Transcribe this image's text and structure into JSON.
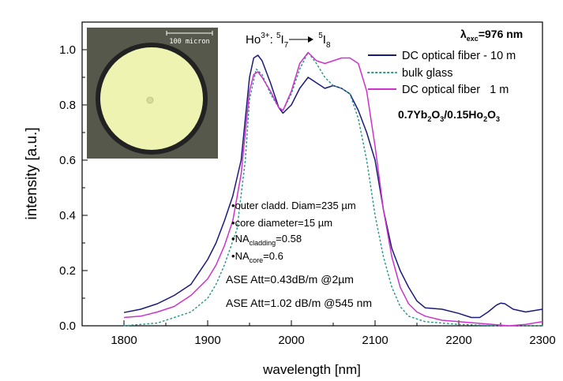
{
  "chart_data": {
    "type": "line",
    "title": "",
    "xlabel": "wavelength [nm]",
    "ylabel": "intensity [a.u.]",
    "xlim": [
      1750,
      2300
    ],
    "ylim": [
      0,
      1.1
    ],
    "xticks": [
      1800,
      1900,
      2000,
      2100,
      2200,
      2300
    ],
    "yticks": [
      0.0,
      0.2,
      0.4,
      0.6,
      0.8,
      1.0
    ],
    "legend_position": "top-right",
    "grid": false,
    "series": [
      {
        "name": "DC optical fiber - 10 m",
        "color": "#1a1a7a",
        "dash": "solid",
        "points": [
          [
            1800,
            0.048
          ],
          [
            1820,
            0.06
          ],
          [
            1840,
            0.08
          ],
          [
            1860,
            0.11
          ],
          [
            1880,
            0.15
          ],
          [
            1900,
            0.24
          ],
          [
            1910,
            0.3
          ],
          [
            1920,
            0.38
          ],
          [
            1930,
            0.47
          ],
          [
            1940,
            0.6
          ],
          [
            1950,
            0.9
          ],
          [
            1955,
            0.97
          ],
          [
            1960,
            0.98
          ],
          [
            1965,
            0.96
          ],
          [
            1975,
            0.88
          ],
          [
            1985,
            0.79
          ],
          [
            1990,
            0.77
          ],
          [
            2000,
            0.8
          ],
          [
            2010,
            0.86
          ],
          [
            2020,
            0.9
          ],
          [
            2030,
            0.88
          ],
          [
            2040,
            0.86
          ],
          [
            2050,
            0.87
          ],
          [
            2060,
            0.86
          ],
          [
            2070,
            0.84
          ],
          [
            2080,
            0.78
          ],
          [
            2090,
            0.7
          ],
          [
            2100,
            0.6
          ],
          [
            2110,
            0.42
          ],
          [
            2120,
            0.28
          ],
          [
            2130,
            0.2
          ],
          [
            2140,
            0.14
          ],
          [
            2150,
            0.09
          ],
          [
            2160,
            0.065
          ],
          [
            2180,
            0.06
          ],
          [
            2200,
            0.045
          ],
          [
            2215,
            0.03
          ],
          [
            2225,
            0.03
          ],
          [
            2235,
            0.05
          ],
          [
            2245,
            0.075
          ],
          [
            2250,
            0.082
          ],
          [
            2255,
            0.08
          ],
          [
            2265,
            0.06
          ],
          [
            2280,
            0.05
          ],
          [
            2300,
            0.06
          ]
        ]
      },
      {
        "name": "bulk glass",
        "color": "#2a9a8a",
        "dash": "dotted",
        "points": [
          [
            1800,
            0.0
          ],
          [
            1840,
            0.01
          ],
          [
            1880,
            0.05
          ],
          [
            1900,
            0.1
          ],
          [
            1910,
            0.15
          ],
          [
            1920,
            0.22
          ],
          [
            1935,
            0.35
          ],
          [
            1945,
            0.6
          ],
          [
            1950,
            0.82
          ],
          [
            1958,
            0.93
          ],
          [
            1965,
            0.91
          ],
          [
            1975,
            0.84
          ],
          [
            1985,
            0.79
          ],
          [
            1990,
            0.78
          ],
          [
            2000,
            0.84
          ],
          [
            2010,
            0.93
          ],
          [
            2020,
            0.99
          ],
          [
            2030,
            0.95
          ],
          [
            2040,
            0.9
          ],
          [
            2050,
            0.87
          ],
          [
            2060,
            0.86
          ],
          [
            2070,
            0.84
          ],
          [
            2080,
            0.75
          ],
          [
            2090,
            0.6
          ],
          [
            2100,
            0.4
          ],
          [
            2110,
            0.25
          ],
          [
            2120,
            0.14
          ],
          [
            2130,
            0.07
          ],
          [
            2140,
            0.035
          ],
          [
            2160,
            0.015
          ],
          [
            2200,
            0.005
          ],
          [
            2250,
            0.0
          ],
          [
            2300,
            0.0
          ]
        ]
      },
      {
        "name": "DC optical fiber   1 m",
        "color": "#cc33cc",
        "dash": "solid",
        "points": [
          [
            1800,
            0.03
          ],
          [
            1820,
            0.035
          ],
          [
            1840,
            0.05
          ],
          [
            1860,
            0.07
          ],
          [
            1880,
            0.11
          ],
          [
            1900,
            0.17
          ],
          [
            1910,
            0.22
          ],
          [
            1920,
            0.29
          ],
          [
            1930,
            0.38
          ],
          [
            1940,
            0.55
          ],
          [
            1950,
            0.85
          ],
          [
            1955,
            0.91
          ],
          [
            1960,
            0.92
          ],
          [
            1965,
            0.9
          ],
          [
            1975,
            0.85
          ],
          [
            1985,
            0.79
          ],
          [
            1990,
            0.78
          ],
          [
            2000,
            0.85
          ],
          [
            2010,
            0.95
          ],
          [
            2020,
            0.99
          ],
          [
            2030,
            0.96
          ],
          [
            2040,
            0.95
          ],
          [
            2050,
            0.96
          ],
          [
            2060,
            0.97
          ],
          [
            2070,
            0.97
          ],
          [
            2080,
            0.95
          ],
          [
            2090,
            0.85
          ],
          [
            2100,
            0.65
          ],
          [
            2110,
            0.42
          ],
          [
            2120,
            0.25
          ],
          [
            2130,
            0.14
          ],
          [
            2140,
            0.08
          ],
          [
            2150,
            0.05
          ],
          [
            2160,
            0.035
          ],
          [
            2180,
            0.02
          ],
          [
            2200,
            0.015
          ],
          [
            2220,
            0.01
          ],
          [
            2240,
            0.005
          ],
          [
            2260,
            0.0
          ],
          [
            2280,
            0.005
          ],
          [
            2300,
            0.015
          ]
        ]
      }
    ],
    "annotations": {
      "transition_main": "Ho",
      "transition_ion_sup": "3+",
      "transition_from_sup": "5",
      "transition_from": "I",
      "transition_from_sub": "7",
      "transition_to_sup": "5",
      "transition_to": "I",
      "transition_to_sub": "8",
      "excitation_lambda": "λ",
      "excitation_sub": "exc",
      "excitation_value": "=976 nm",
      "composition_a": "0.7Yb",
      "composition_a_sub1": "2",
      "composition_a_mid": "O",
      "composition_a_sub2": "3",
      "composition_b": "/0.15Ho",
      "composition_b_sub1": "2",
      "composition_b_mid": "O",
      "composition_b_sub2": "3",
      "bullet": "•",
      "note_outer": "outer cladd. Diam=235 µm",
      "note_core": "core diameter=15 µm",
      "note_na_clad_prefix": "NA",
      "note_na_clad_sub": "cladding",
      "note_na_clad_value": "=0.58",
      "note_na_core_prefix": "NA",
      "note_na_core_sub": "core",
      "note_na_core_value": "=0.6",
      "ase_1": "ASE Att=0.43dB/m @2µm",
      "ase_2": "ASE Att=1.02 dB/m @545 nm"
    },
    "inset": {
      "scale_label": "100 micron",
      "background_color": "#55584a",
      "fiber_color": "#eef3b2",
      "rim_color": "#222222"
    }
  }
}
